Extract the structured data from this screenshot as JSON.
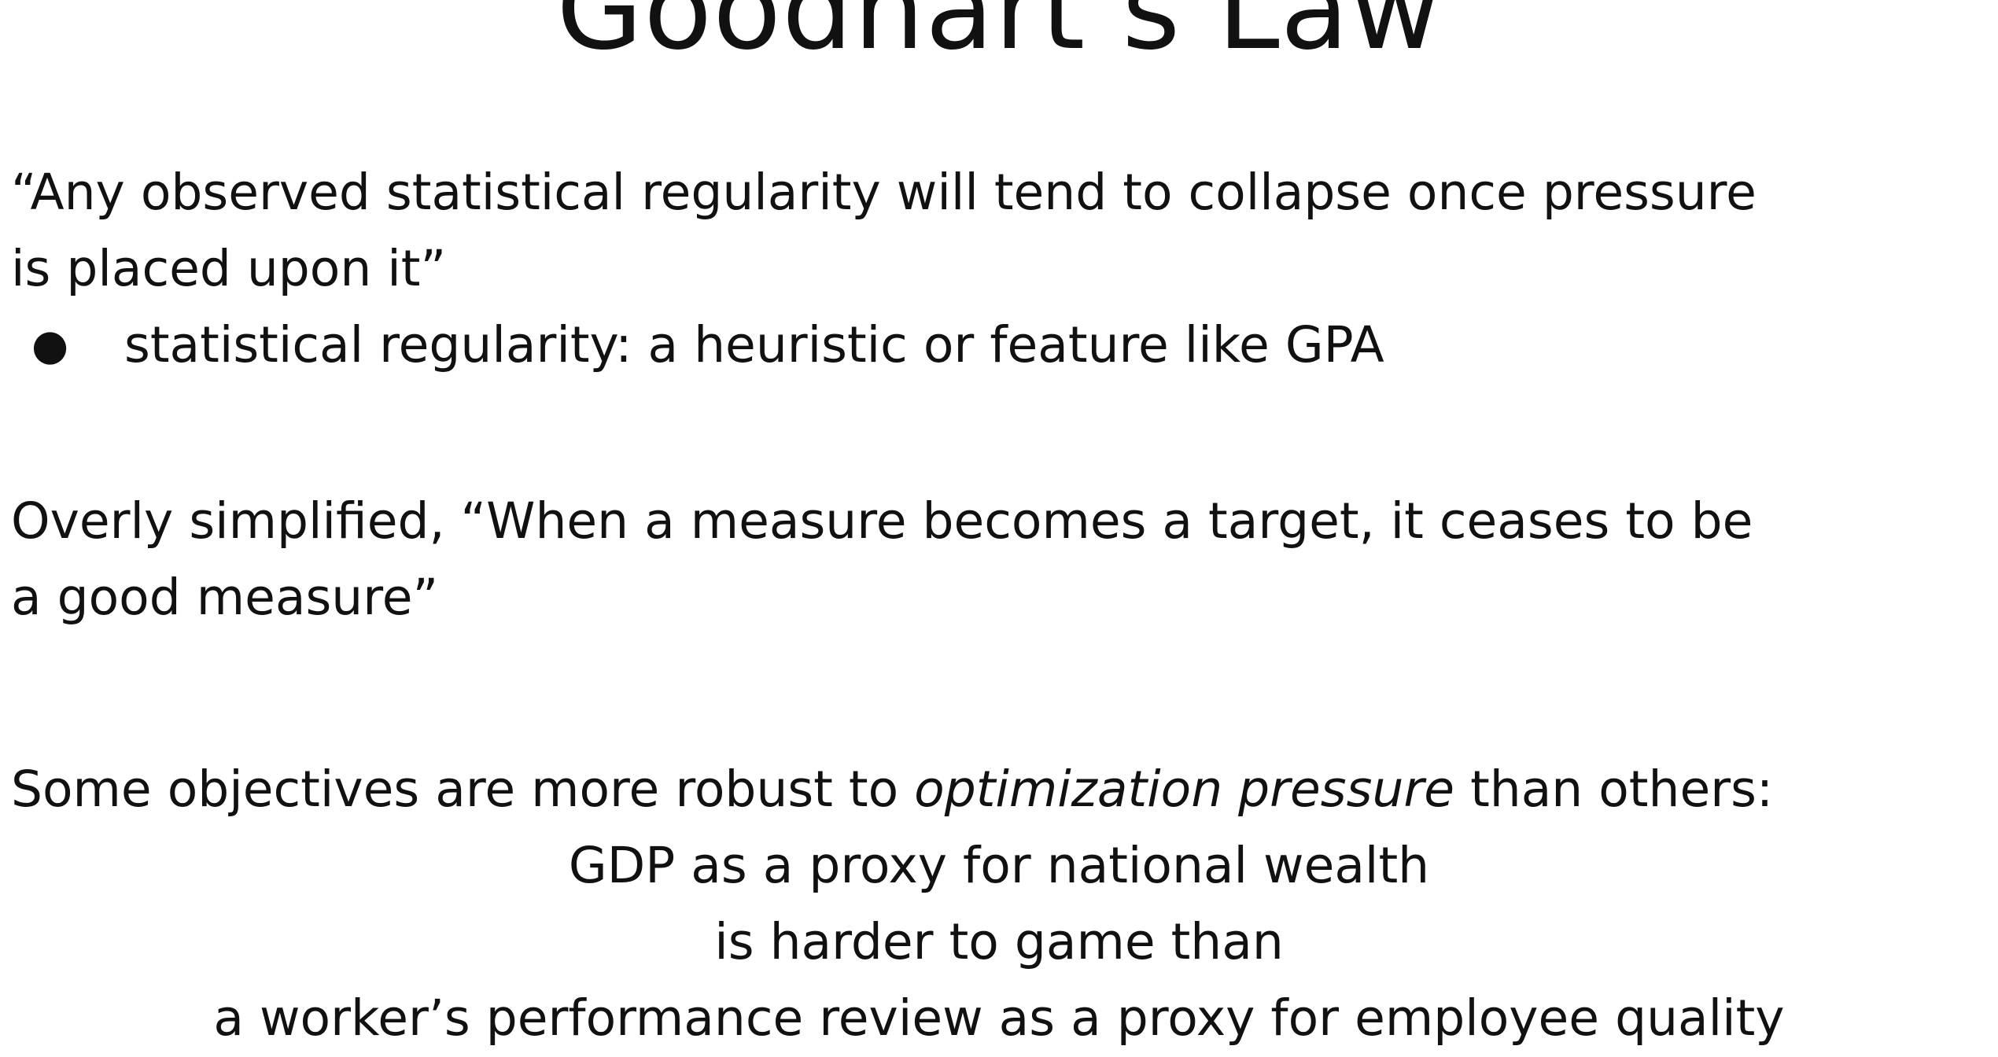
{
  "slide": {
    "title": "Goodhart’s Law",
    "quote": {
      "line1": "“Any observed statistical regularity will tend to collapse once pressure",
      "line2": "is placed upon it”"
    },
    "bullet": {
      "marker": "●",
      "text": "statistical regularity: a heuristic or feature like GPA"
    },
    "simplified": {
      "line1": "Overly simplified, “When a measure becomes a target, it ceases to be",
      "line2": "a good measure”"
    },
    "robustness": {
      "before": "Some objectives are more robust to ",
      "emphasis": "optimization pressure",
      "after": " than others:"
    },
    "comparison": {
      "line1": "GDP as a proxy for national wealth",
      "line2": "is harder to game than",
      "line3": "a worker’s performance review as a proxy for employee quality"
    }
  }
}
